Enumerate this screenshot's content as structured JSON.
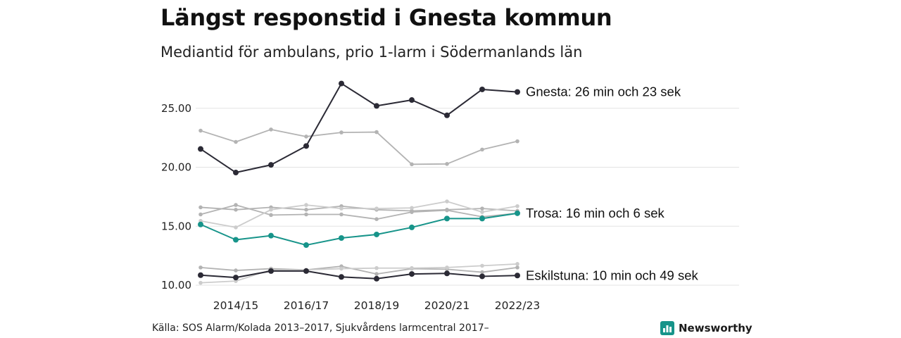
{
  "chart_data": {
    "type": "line",
    "title": "Längst responstid i Gnesta kommun",
    "subtitle": "Mediantid för ambulans, prio 1-larm i Södermanlands län",
    "source": "Källa: SOS Alarm/Kolada 2013–2017, Sjukvårdens larmcentral 2017–",
    "x": [
      "2013/14",
      "2014/15",
      "2015/16",
      "2016/17",
      "2017/18",
      "2018/19",
      "2019/20",
      "2020/21",
      "2021/22",
      "2022/23"
    ],
    "xticks": [
      "2014/15",
      "2016/17",
      "2018/19",
      "2020/21",
      "2022/23"
    ],
    "yticks": [
      "25.00",
      "20.00",
      "15.00",
      "10.00"
    ],
    "ylim": [
      10,
      27.5
    ],
    "grid": true,
    "colors": {
      "highlight": "#2b2a35",
      "teal": "#17948a",
      "grey": "#b3b3b3",
      "grey_light": "#cccccc",
      "grid": "#e3e3e3"
    },
    "series": [
      {
        "values": [
          23.1,
          22.15,
          23.2,
          22.6,
          22.95,
          22.98,
          20.25,
          20.28,
          21.5,
          22.2
        ],
        "style": "grey"
      },
      {
        "values": [
          16.6,
          16.4,
          16.6,
          16.4,
          16.7,
          16.4,
          16.3,
          16.4,
          16.5,
          16.3
        ],
        "style": "grey"
      },
      {
        "values": [
          16.0,
          16.8,
          15.95,
          16.0,
          16.0,
          15.6,
          16.2,
          16.35,
          15.8,
          16.1
        ],
        "style": "grey"
      },
      {
        "values": [
          15.45,
          14.9,
          16.4,
          16.8,
          16.5,
          16.5,
          16.55,
          17.1,
          16.2,
          16.7
        ],
        "style": "grey_light"
      },
      {
        "values": [
          11.5,
          11.25,
          11.4,
          11.3,
          11.6,
          10.95,
          11.4,
          11.35,
          11.1,
          11.5
        ],
        "style": "grey"
      },
      {
        "values": [
          10.2,
          10.35,
          11.3,
          11.3,
          11.4,
          11.45,
          11.45,
          11.5,
          11.65,
          11.8
        ],
        "style": "grey_light"
      },
      {
        "name": "Gnesta",
        "values": [
          21.55,
          19.55,
          20.2,
          21.8,
          27.1,
          25.2,
          25.7,
          24.4,
          26.6,
          26.38
        ],
        "style": "highlight",
        "end_label": "Gnesta: 26 min och 23 sek"
      },
      {
        "name": "Trosa",
        "values": [
          15.15,
          13.85,
          14.2,
          13.4,
          14.0,
          14.3,
          14.9,
          15.65,
          15.65,
          16.1
        ],
        "style": "teal",
        "end_label": "Trosa: 16 min och 6 sek"
      },
      {
        "name": "Eskilstuna",
        "values": [
          10.85,
          10.65,
          11.2,
          11.2,
          10.7,
          10.55,
          10.95,
          11.0,
          10.75,
          10.82
        ],
        "style": "highlight",
        "end_label": "Eskilstuna: 10 min och 49 sek"
      }
    ]
  },
  "brand": {
    "name": "Newsworthy",
    "icon": "bar-chart-badge-icon"
  }
}
